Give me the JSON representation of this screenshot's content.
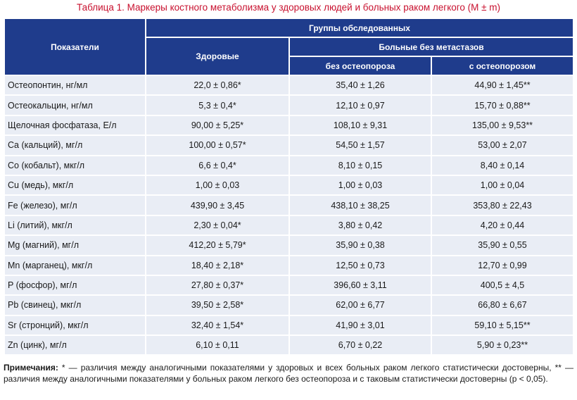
{
  "title": "Таблица 1.  Маркеры костного метаболизма у здоровых людей и больных раком легкого (M ± m)",
  "header": {
    "indicators": "Показатели",
    "groups": "Группы обследованных",
    "healthy": "Здоровые",
    "patients_no_mets": "Больные без метастазов",
    "no_osteoporosis": "без остеопороза",
    "with_osteoporosis": "с остеопорозом"
  },
  "rows": [
    {
      "name": "Остеопонтин, нг/мл",
      "healthy": "22,0 ± 0,86*",
      "no_osteo": "35,40 ± 1,26",
      "with_osteo": "44,90 ± 1,45**"
    },
    {
      "name": "Остеокальцин, нг/мл",
      "healthy": "5,3 ± 0,4*",
      "no_osteo": "12,10 ± 0,97",
      "with_osteo": "15,70 ± 0,88**"
    },
    {
      "name": "Щелочная фосфатаза, Е/л",
      "healthy": "90,00 ± 5,25*",
      "no_osteo": "108,10 ± 9,31",
      "with_osteo": "135,00 ± 9,53**"
    },
    {
      "name": "Ca (кальций), мг/л",
      "healthy": "100,00 ± 0,57*",
      "no_osteo": "54,50 ± 1,57",
      "with_osteo": "53,00 ± 2,07"
    },
    {
      "name": "Co (кобальт), мкг/л",
      "healthy": "6,6 ± 0,4*",
      "no_osteo": "8,10 ± 0,15",
      "with_osteo": "8,40 ± 0,14"
    },
    {
      "name": "Cu (медь), мкг/л",
      "healthy": "1,00 ± 0,03",
      "no_osteo": "1,00 ± 0,03",
      "with_osteo": "1,00 ± 0,04"
    },
    {
      "name": "Fe (железо), мг/л",
      "healthy": "439,90 ± 3,45",
      "no_osteo": "438,10 ± 38,25",
      "with_osteo": "353,80 ± 22,43"
    },
    {
      "name": "Li (литий), мкг/л",
      "healthy": "2,30 ± 0,04*",
      "no_osteo": "3,80 ± 0,42",
      "with_osteo": "4,20 ± 0,44"
    },
    {
      "name": "Mg (магний), мг/л",
      "healthy": "412,20 ± 5,79*",
      "no_osteo": "35,90 ± 0,38",
      "with_osteo": "35,90 ± 0,55"
    },
    {
      "name": "Mn (марганец), мкг/л",
      "healthy": "18,40 ± 2,18*",
      "no_osteo": "12,50 ± 0,73",
      "with_osteo": "12,70 ± 0,99"
    },
    {
      "name": "P (фосфор), мг/л",
      "healthy": "27,80 ± 0,37*",
      "no_osteo": "396,60 ± 3,11",
      "with_osteo": "400,5 ± 4,5"
    },
    {
      "name": "Pb (свинец), мкг/л",
      "healthy": "39,50 ± 2,58*",
      "no_osteo": "62,00 ± 6,77",
      "with_osteo": "66,80 ± 6,67"
    },
    {
      "name": "Sr (стронций), мкг/л",
      "healthy": "32,40 ± 1,54*",
      "no_osteo": "41,90 ± 3,01",
      "with_osteo": "59,10 ± 5,15**"
    },
    {
      "name": "Zn (цинк), мг/л",
      "healthy": "6,10 ± 0,11",
      "no_osteo": "6,70 ± 0,22",
      "with_osteo": "5,90 ± 0,23**"
    }
  ],
  "note": {
    "label": "Примечания:",
    "text": " * — различия между аналогичными показателями у здоровых и всех больных раком легкого статистически достоверны, ** — различия между аналогичными показателями у больных раком легкого без остеопороза и с таковым статистически достоверны (p < 0,05)."
  },
  "colors": {
    "title": "#c8102e",
    "header_bg": "#1f3c8c",
    "cell_bg": "#e9edf5"
  }
}
